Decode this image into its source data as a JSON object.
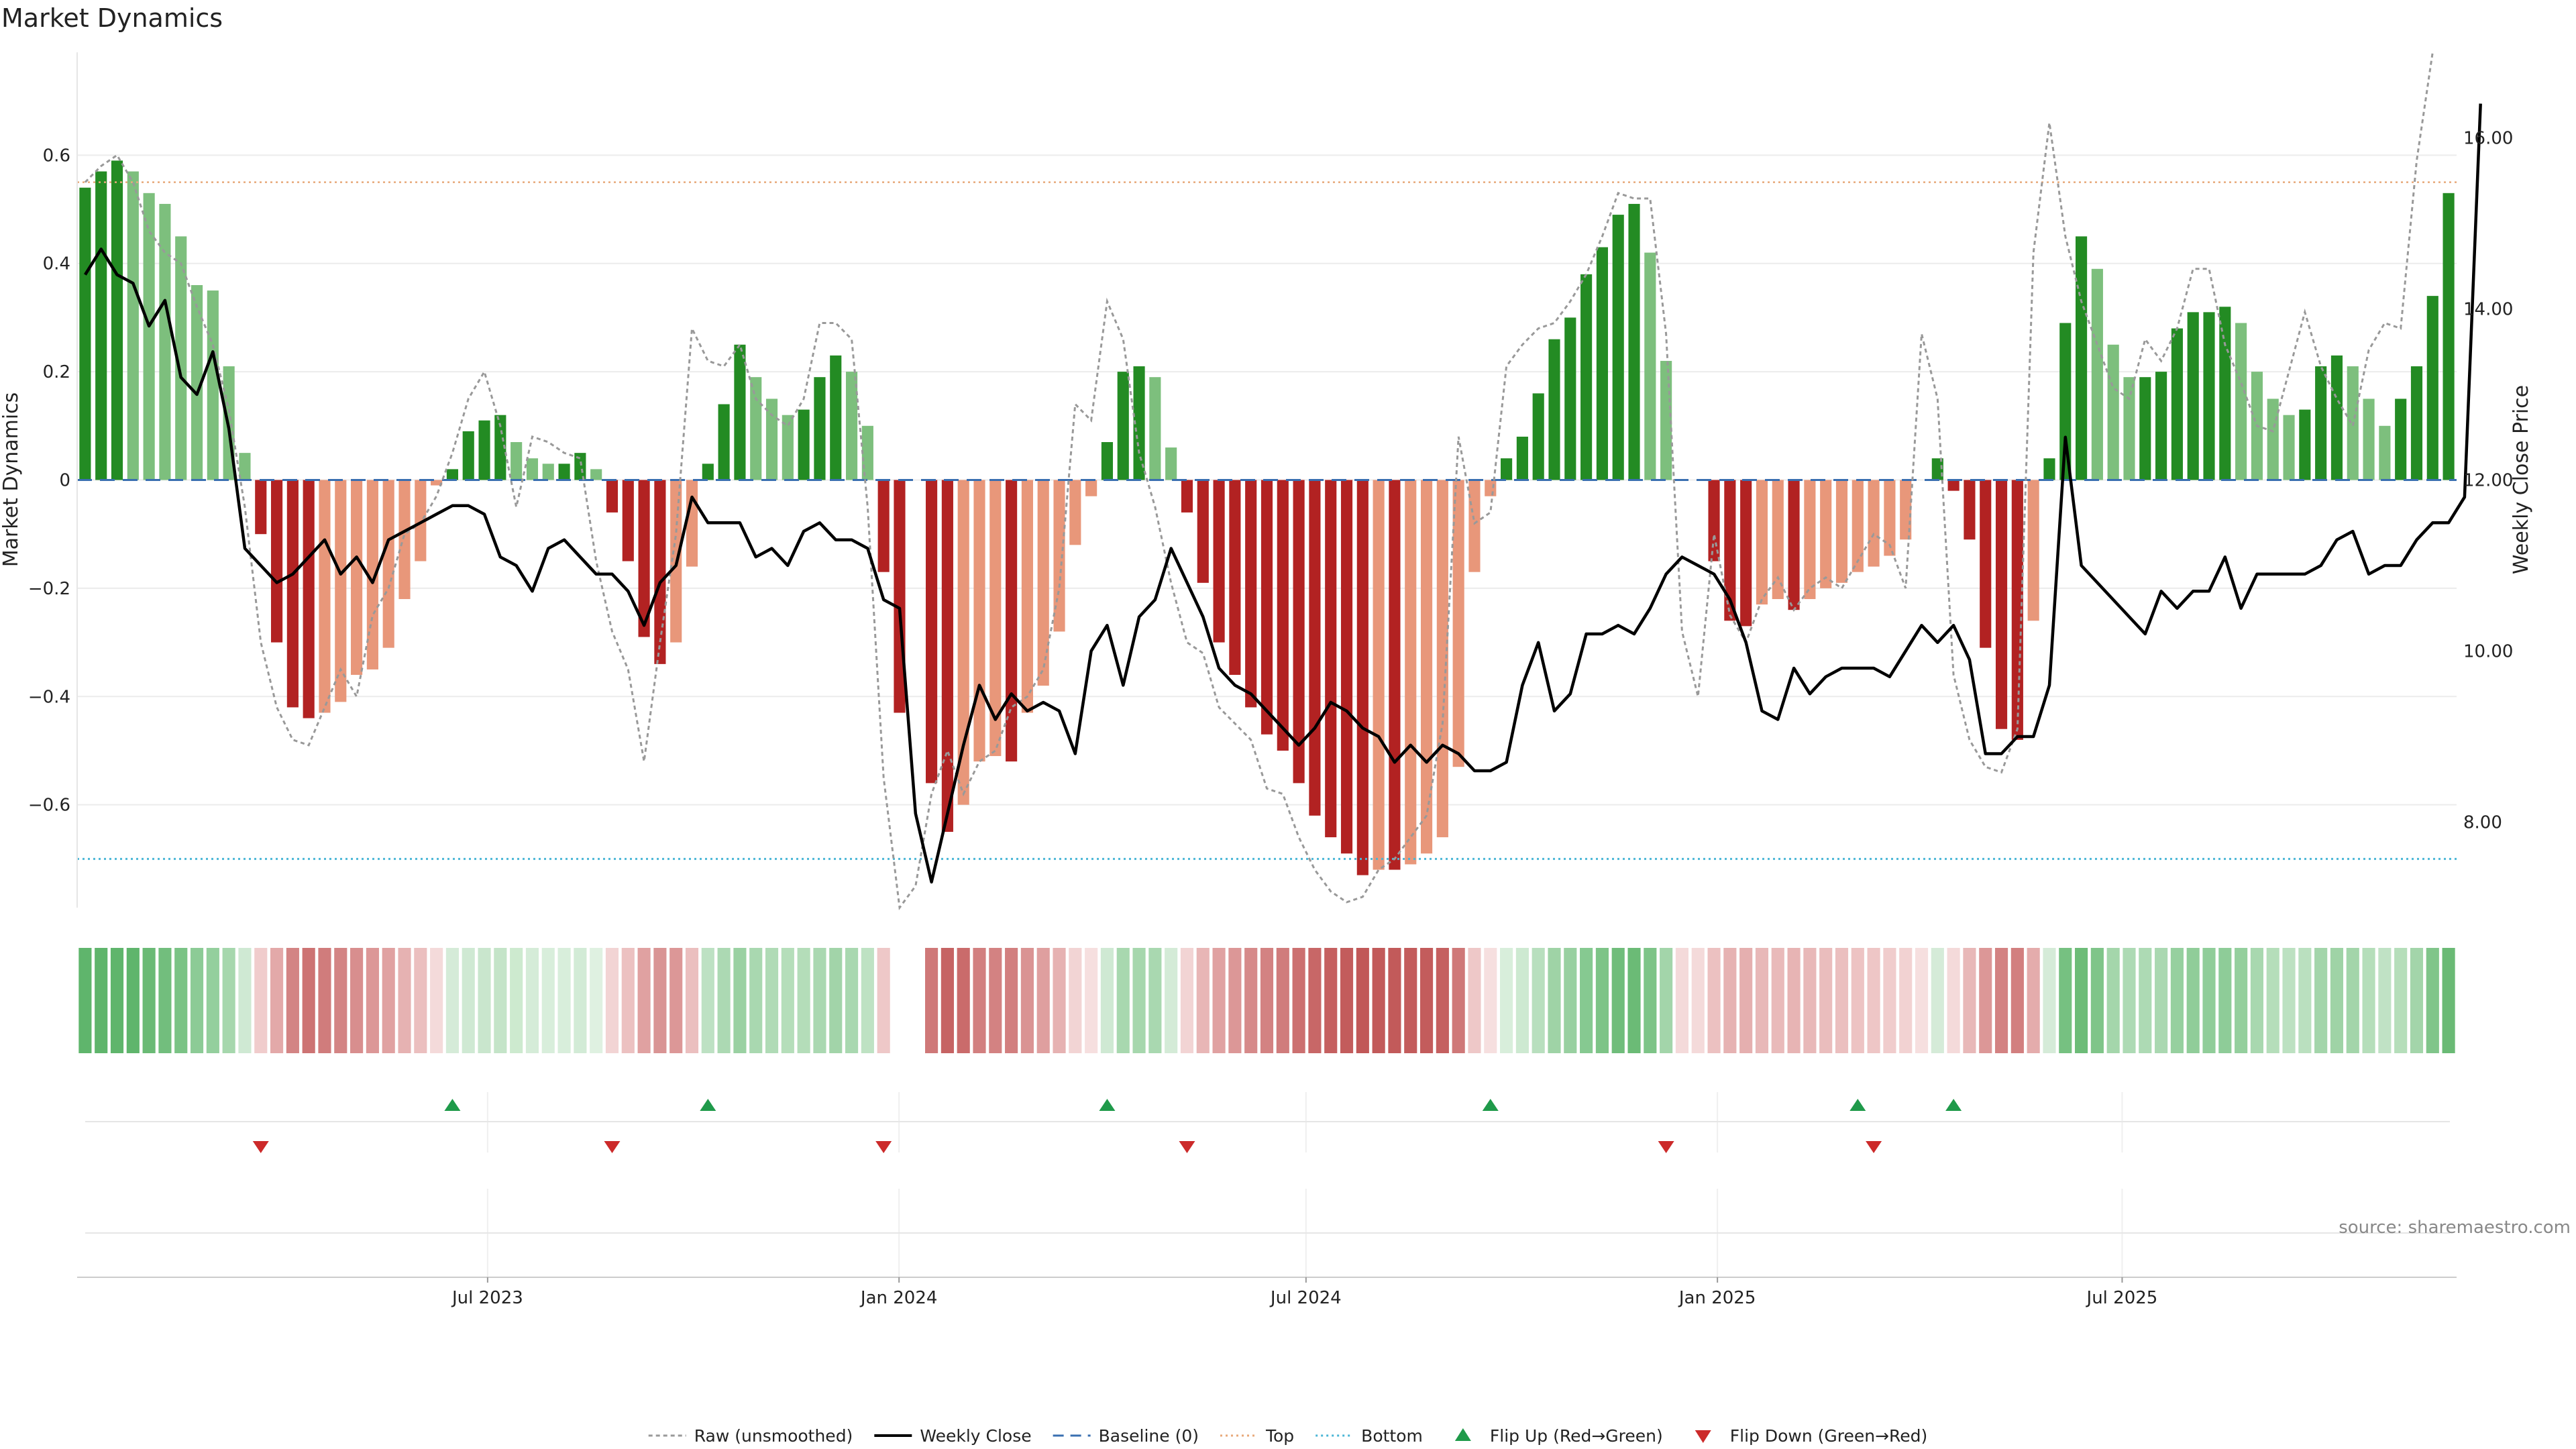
{
  "chart_data": {
    "type": "bar",
    "title": "Market Dynamics",
    "ylabel_left": "Market Dynamics",
    "ylabel_right": "Weekly Close Price",
    "ylim_left": [
      -0.79,
      0.79
    ],
    "ylim_right": [
      7.0,
      17.0
    ],
    "yticks_left": [
      {
        "v": 0.6,
        "t": "0.6"
      },
      {
        "v": 0.4,
        "t": "0.4"
      },
      {
        "v": 0.2,
        "t": "0.2"
      },
      {
        "v": 0,
        "t": "0"
      },
      {
        "v": -0.2,
        "t": "−0.2"
      },
      {
        "v": -0.4,
        "t": "−0.4"
      },
      {
        "v": -0.6,
        "t": "−0.6"
      }
    ],
    "yticks_right": [
      {
        "v": 16,
        "t": "16.00"
      },
      {
        "v": 14,
        "t": "14.00"
      },
      {
        "v": 12,
        "t": "12.00"
      },
      {
        "v": 10,
        "t": "10.00"
      },
      {
        "v": 8,
        "t": "8.00"
      }
    ],
    "x_start": "2023-01-02",
    "x_end": "2025-11-24",
    "xticks": [
      {
        "date": "2023-07-01",
        "label": "Jul 2023"
      },
      {
        "date": "2024-01-01",
        "label": "Jan 2024"
      },
      {
        "date": "2024-07-01",
        "label": "Jul 2024"
      },
      {
        "date": "2025-01-01",
        "label": "Jan 2025"
      },
      {
        "date": "2025-07-01",
        "label": "Jul 2025"
      }
    ],
    "top_level": 0.55,
    "bottom_level": -0.7,
    "gap_week_index": 51,
    "market_dynamics": [
      0.54,
      0.57,
      0.59,
      0.57,
      0.53,
      0.51,
      0.45,
      0.36,
      0.35,
      0.21,
      0.05,
      -0.1,
      -0.3,
      -0.42,
      -0.44,
      -0.43,
      -0.41,
      -0.36,
      -0.35,
      -0.31,
      -0.22,
      -0.15,
      -0.01,
      0.02,
      0.09,
      0.11,
      0.12,
      0.07,
      0.04,
      0.03,
      0.03,
      0.05,
      0.02,
      -0.06,
      -0.15,
      -0.29,
      -0.34,
      -0.3,
      -0.16,
      0.03,
      0.14,
      0.25,
      0.19,
      0.15,
      0.12,
      0.13,
      0.19,
      0.23,
      0.2,
      0.1,
      -0.17,
      -0.43,
      0,
      -0.56,
      -0.65,
      -0.6,
      -0.52,
      -0.51,
      -0.52,
      -0.43,
      -0.38,
      -0.28,
      -0.12,
      -0.03,
      0.07,
      0.2,
      0.21,
      0.19,
      0.06,
      -0.06,
      -0.19,
      -0.3,
      -0.36,
      -0.42,
      -0.47,
      -0.5,
      -0.56,
      -0.62,
      -0.66,
      -0.69,
      -0.73,
      -0.72,
      -0.72,
      -0.71,
      -0.69,
      -0.66,
      -0.53,
      -0.17,
      -0.03,
      0.04,
      0.08,
      0.16,
      0.26,
      0.3,
      0.38,
      0.43,
      0.49,
      0.51,
      0.42,
      0.22,
      0,
      0,
      -0.15,
      -0.26,
      -0.27,
      -0.23,
      -0.22,
      -0.24,
      -0.22,
      -0.2,
      -0.19,
      -0.17,
      -0.16,
      -0.14,
      -0.11,
      0,
      0.04,
      -0.02,
      -0.11,
      -0.31,
      -0.46,
      -0.48,
      -0.26,
      0.04,
      0.29,
      0.45,
      0.39,
      0.25,
      0.19,
      0.19,
      0.2,
      0.28,
      0.31,
      0.31,
      0.32,
      0.29,
      0.2,
      0.15,
      0.12,
      0.13,
      0.21,
      0.23,
      0.21,
      0.15,
      0.1,
      0.15,
      0.21,
      0.34,
      0.53
    ],
    "raw_unsmoothed": [
      0.55,
      0.58,
      0.6,
      0.55,
      0.46,
      0.42,
      0.4,
      0.32,
      0.25,
      0.13,
      -0.05,
      -0.3,
      -0.42,
      -0.48,
      -0.49,
      -0.42,
      -0.35,
      -0.4,
      -0.25,
      -0.2,
      -0.1,
      -0.08,
      -0.03,
      0.05,
      0.15,
      0.2,
      0.1,
      -0.05,
      0.08,
      0.07,
      0.05,
      0.04,
      -0.15,
      -0.28,
      -0.35,
      -0.52,
      -0.3,
      -0.1,
      0.28,
      0.22,
      0.21,
      0.25,
      0.15,
      0.12,
      0.1,
      0.15,
      0.29,
      0.29,
      0.26,
      -0.05,
      -0.55,
      -0.8,
      -0.75,
      -0.58,
      -0.5,
      -0.58,
      -0.52,
      -0.5,
      -0.42,
      -0.4,
      -0.35,
      -0.2,
      0.14,
      0.11,
      0.33,
      0.26,
      0.05,
      -0.05,
      -0.19,
      -0.3,
      -0.32,
      -0.42,
      -0.45,
      -0.48,
      -0.57,
      -0.58,
      -0.66,
      -0.72,
      -0.76,
      -0.78,
      -0.77,
      -0.72,
      -0.7,
      -0.66,
      -0.62,
      -0.45,
      0.08,
      -0.08,
      -0.06,
      0.21,
      0.25,
      0.28,
      0.29,
      0.33,
      0.38,
      0.45,
      0.53,
      0.52,
      0.52,
      0.27,
      -0.28,
      -0.4,
      -0.1,
      -0.25,
      -0.3,
      -0.22,
      -0.18,
      -0.24,
      -0.2,
      -0.18,
      -0.2,
      -0.15,
      -0.1,
      -0.12,
      -0.2,
      0.27,
      0.15,
      -0.36,
      -0.48,
      -0.53,
      -0.54,
      -0.46,
      0.42,
      0.66,
      0.45,
      0.33,
      0.25,
      0.17,
      0.15,
      0.26,
      0.22,
      0.28,
      0.39,
      0.39,
      0.25,
      0.18,
      0.1,
      0.09,
      0.2,
      0.31,
      0.21,
      0.15,
      0.1,
      0.24,
      0.29,
      0.28,
      0.59,
      0.79
    ],
    "weekly_close": [
      14.4,
      14.7,
      14.4,
      14.3,
      13.8,
      14.1,
      13.2,
      13.0,
      13.5,
      12.6,
      11.2,
      11.0,
      10.8,
      10.9,
      11.1,
      11.3,
      10.9,
      11.1,
      10.8,
      11.3,
      11.4,
      11.5,
      11.6,
      11.7,
      11.7,
      11.6,
      11.1,
      11.0,
      10.7,
      11.2,
      11.3,
      11.1,
      10.9,
      10.9,
      10.7,
      10.3,
      10.8,
      11.0,
      11.8,
      11.5,
      11.5,
      11.5,
      11.1,
      11.2,
      11.0,
      11.4,
      11.5,
      11.3,
      11.3,
      11.2,
      10.6,
      10.5,
      8.1,
      7.3,
      8.1,
      8.9,
      9.6,
      9.2,
      9.5,
      9.3,
      9.4,
      9.3,
      8.8,
      10.0,
      10.3,
      9.6,
      10.4,
      10.6,
      11.2,
      10.8,
      10.4,
      9.8,
      9.6,
      9.5,
      9.3,
      9.1,
      8.9,
      9.1,
      9.4,
      9.3,
      9.1,
      9.0,
      8.7,
      8.9,
      8.7,
      8.9,
      8.8,
      8.6,
      8.6,
      8.7,
      9.6,
      10.1,
      9.3,
      9.5,
      10.2,
      10.2,
      10.3,
      10.2,
      10.5,
      10.9,
      11.1,
      11.0,
      10.9,
      10.6,
      10.1,
      9.3,
      9.2,
      9.8,
      9.5,
      9.7,
      9.8,
      9.8,
      9.8,
      9.7,
      10.0,
      10.3,
      10.1,
      10.3,
      9.9,
      8.8,
      8.8,
      9.0,
      9.0,
      9.6,
      12.5,
      11.0,
      10.8,
      10.6,
      10.4,
      10.2,
      10.7,
      10.5,
      10.7,
      10.7,
      11.1,
      10.5,
      10.9,
      10.9,
      10.9,
      10.9,
      11.0,
      11.3,
      11.4,
      10.9,
      11.0,
      11.0,
      11.3,
      11.5,
      11.5,
      11.8,
      16.4
    ],
    "flip_up_weeks": [
      23,
      39,
      64,
      88,
      111,
      117
    ],
    "flip_down_weeks": [
      11,
      33,
      50,
      69,
      99,
      112
    ],
    "strip_colors": [
      "#5fb56c",
      "#5fb56c",
      "#5fb56c",
      "#5fb56c",
      "#6aba75",
      "#72be7d",
      "#7ac385",
      "#8ccb96",
      "#94cf9d",
      "#a6d7ad",
      "#cfe9d3",
      "#f0cccc",
      "#e3a9a9",
      "#d38484",
      "#cd7373",
      "#d07c7c",
      "#d38484",
      "#d88e8e",
      "#dc9797",
      "#e0a1a1",
      "#e6b2b2",
      "#ebbfbf",
      "#f4dada",
      "#d5ebd8",
      "#cfe9d3",
      "#c9e6cd",
      "#c4e4c8",
      "#cdeacf",
      "#d5ecd8",
      "#d8eedb",
      "#d8eedb",
      "#d2ebd6",
      "#dff1e1",
      "#f2d4d4",
      "#ecc1c1",
      "#e0a1a1",
      "#d99494",
      "#dc9797",
      "#ebbfbf",
      "#bde1c3",
      "#acd9b3",
      "#9ad1a2",
      "#a9d8b0",
      "#b0dbb6",
      "#b5deba",
      "#b4ddb9",
      "#aad8b1",
      "#a2d4a9",
      "#a9d8b0",
      "#bee2c3",
      "#eec8c8",
      "#d68a8a",
      "#ffffff",
      "#cf7878",
      "#c66363",
      "#ca6b6b",
      "#d27f7f",
      "#d38282",
      "#d27f7f",
      "#da9393",
      "#df9f9f",
      "#e6b2b2",
      "#f2d4d4",
      "#f6dfdf",
      "#cfe9d3",
      "#a8d8af",
      "#a6d7ad",
      "#a9d8b0",
      "#d4ebd7",
      "#f2d4d4",
      "#e8b6b6",
      "#e0a1a1",
      "#dc9797",
      "#d68a8a",
      "#d38282",
      "#d07c7c",
      "#cc7070",
      "#c86767",
      "#c56060",
      "#c35c5c",
      "#c15858",
      "#c25a5a",
      "#c25a5a",
      "#c35c5c",
      "#c35c5c",
      "#c56060",
      "#cf7878",
      "#eec8c8",
      "#f6dfdf",
      "#d8eedb",
      "#cde9d1",
      "#b8dfbe",
      "#9fd3a6",
      "#98d0a0",
      "#86c991",
      "#7dc487",
      "#70bd7b",
      "#6bbb76",
      "#7dc487",
      "#a3d5aa",
      "#f4dada",
      "#f4dada",
      "#ecc1c1",
      "#e6b2b2",
      "#e5afaf",
      "#e8b8b8",
      "#e9baba",
      "#e7b4b4",
      "#e8b8b8",
      "#eabdbd",
      "#ebbfbf",
      "#edc3c3",
      "#eec6c6",
      "#f0cccc",
      "#f2d2d2",
      "#f6dfdf",
      "#d5ebd8",
      "#f4dada",
      "#e8b8b8",
      "#dc9797",
      "#d38282",
      "#d27f7f",
      "#e4acac",
      "#d5ebd8",
      "#76c181",
      "#6dbc78",
      "#7fc589",
      "#a4d6ab",
      "#addab4",
      "#addab4",
      "#aad8b1",
      "#96d09f",
      "#90cd99",
      "#90cd99",
      "#8ecc98",
      "#94cf9d",
      "#a8d8af",
      "#b5deba",
      "#bce1c1",
      "#bae0bf",
      "#a3d5aa",
      "#9fd3a6",
      "#a3d5aa",
      "#b5deba",
      "#c0e2c5",
      "#b5deba",
      "#a3d5aa",
      "#80c58a",
      "#6aba75"
    ],
    "legend": [
      {
        "type": "dashed-line",
        "label": "Raw (unsmoothed)",
        "color": "#999999"
      },
      {
        "type": "solid-line",
        "label": "Weekly Close",
        "color": "#000000"
      },
      {
        "type": "dash-line",
        "label": "Baseline (0)",
        "color": "#3a6fb0"
      },
      {
        "type": "dotted-line",
        "label": "Top",
        "color": "#e8a97a"
      },
      {
        "type": "dotted-line",
        "label": "Bottom",
        "color": "#4ab6d6"
      },
      {
        "type": "triangle-up",
        "label": "Flip Up (Red→Green)",
        "color": "#1f9a4a"
      },
      {
        "type": "triangle-down",
        "label": "Flip Down (Green→Red)",
        "color": "#cc2a2a"
      }
    ],
    "legend_position": "bottom-center",
    "bar_colors": {
      "strong_pos": "#238b23",
      "weak_pos": "#7dbf7d",
      "strong_neg": "#b22222",
      "weak_neg": "#e8977a"
    },
    "source": "source: sharemaestro.com"
  }
}
